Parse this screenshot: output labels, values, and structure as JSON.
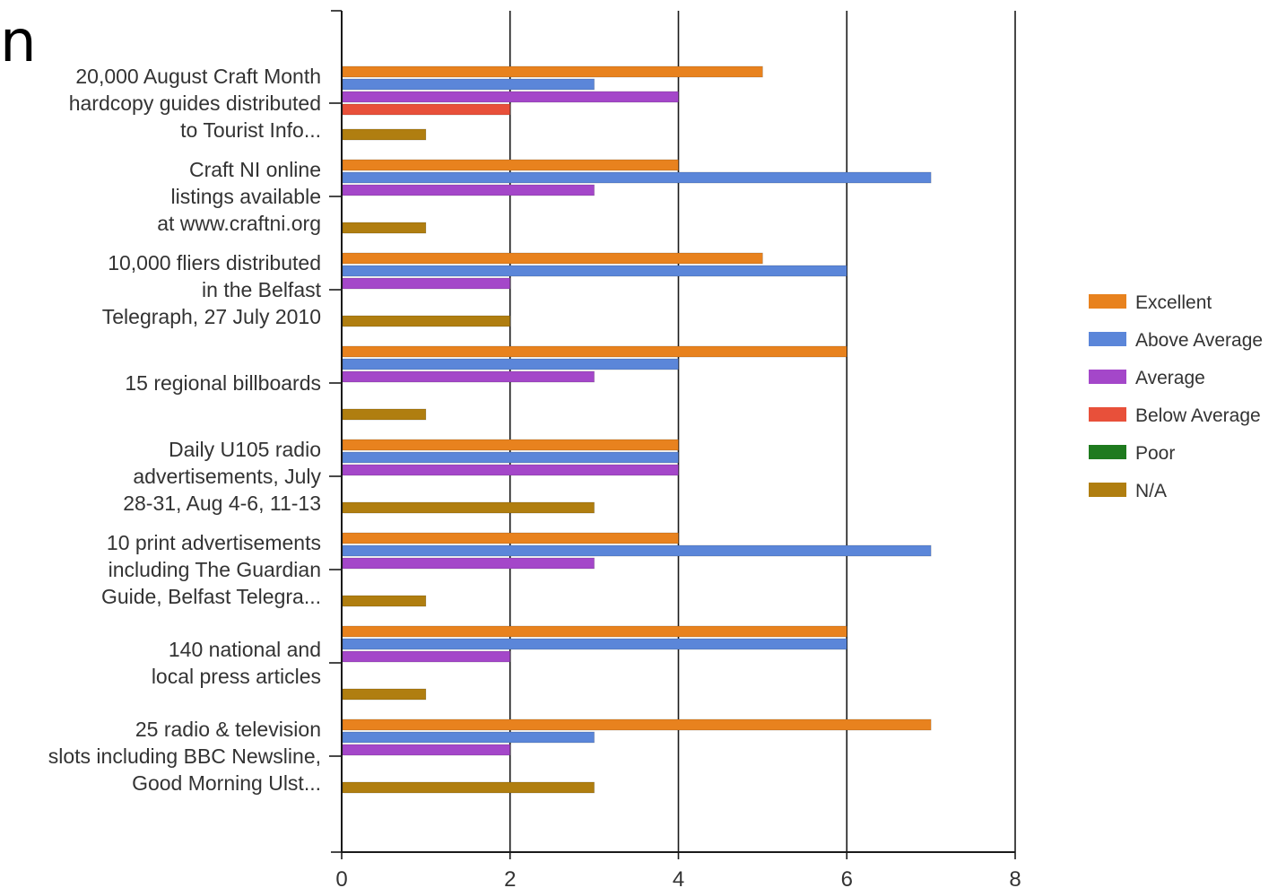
{
  "top_left_fragment": "n",
  "chart_data": {
    "type": "bar",
    "orientation": "horizontal",
    "title": "",
    "xlabel": "",
    "ylabel": "",
    "xlim": [
      0,
      8
    ],
    "xticks": [
      "0",
      "2",
      "4",
      "6",
      "8"
    ],
    "grid": true,
    "legend_position": "right",
    "categories": [
      [
        "20,000 August Craft Month",
        "hardcopy guides distributed",
        "to Tourist Info..."
      ],
      [
        "Craft NI online",
        "listings available",
        "at www.craftni.org"
      ],
      [
        "10,000 fliers distributed",
        "in the Belfast",
        "Telegraph, 27 July 2010"
      ],
      [
        "15 regional billboards"
      ],
      [
        "Daily U105 radio",
        "advertisements, July",
        "28-31, Aug 4-6, 11-13"
      ],
      [
        "10 print advertisements",
        "including The Guardian",
        "Guide, Belfast Telegra..."
      ],
      [
        "140 national and",
        "local press articles"
      ],
      [
        "25 radio & television",
        "slots including BBC Newsline,",
        "Good Morning Ulst..."
      ]
    ],
    "series": [
      {
        "name": "Excellent",
        "color": "#E8821E",
        "values": [
          5,
          4,
          5,
          6,
          4,
          4,
          6,
          7
        ]
      },
      {
        "name": "Above Average",
        "color": "#5B86D9",
        "values": [
          3,
          7,
          6,
          4,
          4,
          7,
          6,
          3
        ]
      },
      {
        "name": "Average",
        "color": "#A447C9",
        "values": [
          4,
          3,
          2,
          3,
          4,
          3,
          2,
          2
        ]
      },
      {
        "name": "Below Average",
        "color": "#E8503A",
        "values": [
          2,
          0,
          0,
          0,
          0,
          0,
          0,
          0
        ]
      },
      {
        "name": "Poor",
        "color": "#1E7A1E",
        "values": [
          0,
          0,
          0,
          0,
          0,
          0,
          0,
          0
        ]
      },
      {
        "name": "N/A",
        "color": "#B07E10",
        "values": [
          1,
          1,
          2,
          1,
          3,
          1,
          1,
          3
        ]
      }
    ]
  }
}
